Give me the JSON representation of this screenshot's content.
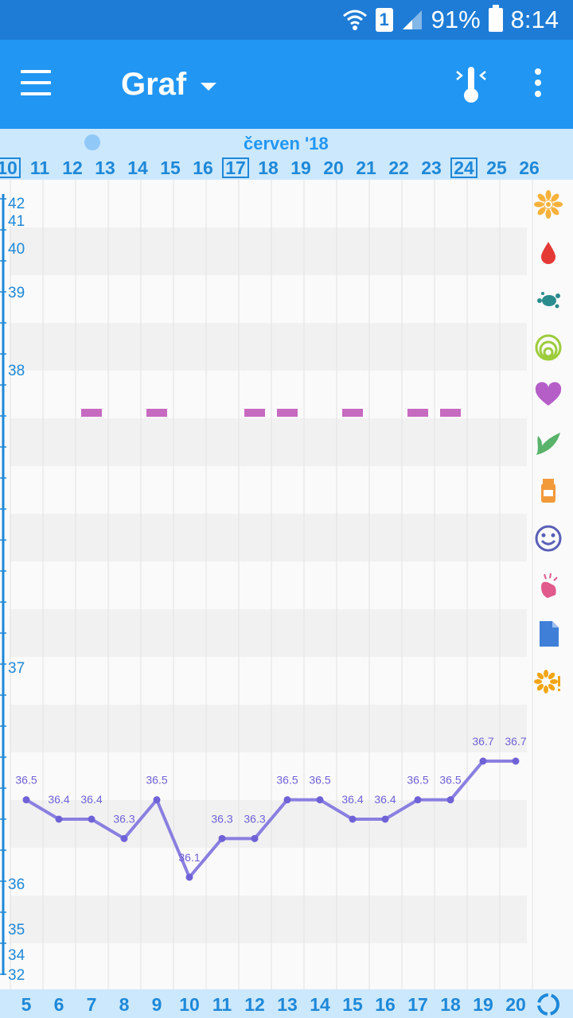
{
  "status_bar": {
    "battery_percent": "91%",
    "time": "8:14",
    "sim_label": "1",
    "icons": [
      "wifi-icon",
      "sim-icon",
      "signal-icon",
      "battery-icon"
    ]
  },
  "app_bar": {
    "title": "Graf",
    "icons": [
      "menu-icon",
      "dropdown-caret-icon",
      "thermometer-icon",
      "overflow-menu-icon"
    ]
  },
  "date_header": {
    "month": "červen '18",
    "days": [
      {
        "label": "10",
        "boxed": true
      },
      {
        "label": "11"
      },
      {
        "label": "12"
      },
      {
        "label": "13"
      },
      {
        "label": "14"
      },
      {
        "label": "15"
      },
      {
        "label": "16"
      },
      {
        "label": "17",
        "boxed": true
      },
      {
        "label": "18"
      },
      {
        "label": "19"
      },
      {
        "label": "20"
      },
      {
        "label": "21"
      },
      {
        "label": "22"
      },
      {
        "label": "23"
      },
      {
        "label": "24",
        "boxed": true
      },
      {
        "label": "25"
      },
      {
        "label": "26"
      }
    ]
  },
  "cycle_days": [
    "5",
    "6",
    "7",
    "8",
    "9",
    "10",
    "11",
    "12",
    "13",
    "14",
    "15",
    "16",
    "17",
    "18",
    "19",
    "20"
  ],
  "side_icons": [
    "flower-icon",
    "blood-drop-icon",
    "splash-icon",
    "cervix-icon",
    "heart-icon",
    "leaf-icon",
    "pill-bottle-icon",
    "smiley-icon",
    "hand-icon",
    "document-icon",
    "flower-alert-icon"
  ],
  "colors": {
    "app_bar": "#2196f3",
    "status_bar": "#1e7cd6",
    "header_bg": "#cce8fc",
    "temperature_line": "#8a7fe0",
    "marker": "#c66bc0",
    "axis_text": "#1e88d8"
  },
  "chart_data": {
    "type": "line",
    "y_tick_labels": [
      "42",
      "41",
      "40",
      "39",
      "38",
      "37",
      "36",
      "35",
      "34",
      "32"
    ],
    "x": [
      "5",
      "6",
      "7",
      "8",
      "9",
      "10",
      "11",
      "12",
      "13",
      "14",
      "15",
      "16",
      "17",
      "18",
      "19",
      "20"
    ],
    "series": [
      {
        "values": [
          36.5,
          36.4,
          36.4,
          36.3,
          36.5,
          36.1,
          36.3,
          36.3,
          36.5,
          36.5,
          36.4,
          36.4,
          36.5,
          36.5,
          36.7,
          36.7
        ],
        "labels": [
          "36.5",
          "36.4",
          "36.4",
          "36.3",
          "36.5",
          "36.1",
          "36.3",
          "36.3",
          "36.5",
          "36.5",
          "36.4",
          "36.4",
          "36.5",
          "36.5",
          "36.7",
          "36.7"
        ]
      }
    ],
    "markers_on_days": [
      "7",
      "9",
      "12",
      "13",
      "15",
      "17",
      "18"
    ],
    "grid": true
  }
}
